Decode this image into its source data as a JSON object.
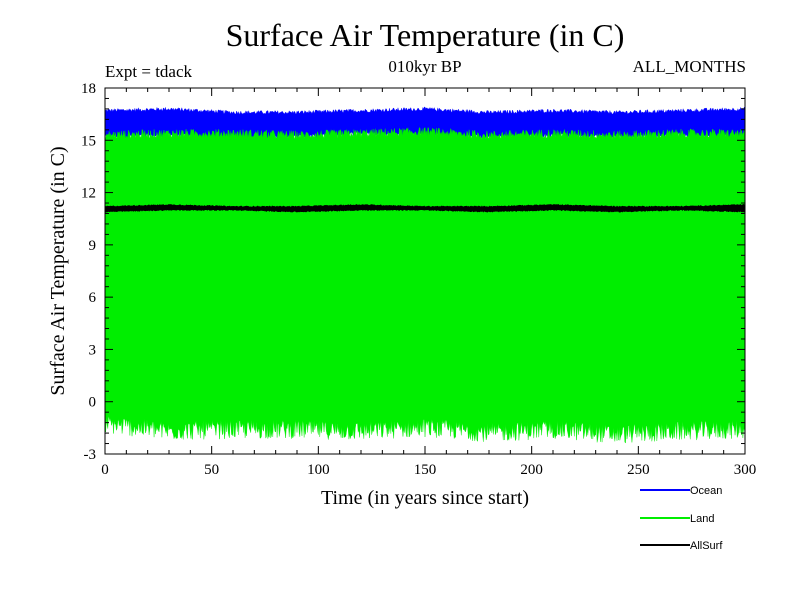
{
  "chart_data": {
    "type": "area",
    "title": "Surface Air Temperature (in C)",
    "subtitle_left": "Expt = tdack",
    "subtitle_center": "010kyr BP",
    "subtitle_right": "ALL_MONTHS",
    "xlabel": "Time (in years since start)",
    "ylabel": "Surface Air Temperature (in C)",
    "xlim": [
      0,
      300
    ],
    "ylim": [
      -3,
      18
    ],
    "xticks": [
      0,
      50,
      100,
      150,
      200,
      250,
      300
    ],
    "yticks": [
      -3,
      0,
      3,
      6,
      9,
      12,
      15,
      18
    ],
    "xtick_labels": [
      "0",
      "50",
      "100",
      "150",
      "200",
      "250",
      "300"
    ],
    "ytick_labels": [
      "-3",
      "0",
      "3",
      "6",
      "9",
      "12",
      "15",
      "18"
    ],
    "legend_position": "bottom-right",
    "series": [
      {
        "name": "Ocean",
        "color": "#0000ff",
        "sampling": "monthly",
        "band_low": [
          15.2,
          15.3,
          15.1,
          15.2,
          15.4,
          15.3,
          15.2,
          15.3,
          15.2,
          15.3,
          15.2
        ],
        "band_high": [
          16.7,
          16.8,
          16.6,
          16.6,
          16.7,
          16.8,
          16.6,
          16.7,
          16.6,
          16.7,
          16.8
        ]
      },
      {
        "name": "Land",
        "color": "#00ee00",
        "sampling": "monthly",
        "band_low": [
          -1.5,
          -1.9,
          -1.8,
          -1.8,
          -1.9,
          -1.7,
          -2.0,
          -1.8,
          -2.1,
          -1.9,
          -1.8
        ],
        "band_high": [
          15.3,
          15.4,
          15.4,
          15.3,
          15.4,
          15.5,
          15.3,
          15.4,
          15.3,
          15.4,
          15.4
        ]
      },
      {
        "name": "AllSurf",
        "color": "#000000",
        "sampling": "monthly",
        "band_low": [
          10.9,
          11.0,
          11.0,
          10.9,
          11.0,
          11.0,
          10.9,
          11.0,
          10.9,
          11.0,
          10.9
        ],
        "band_high": [
          11.2,
          11.3,
          11.2,
          11.2,
          11.3,
          11.2,
          11.2,
          11.3,
          11.2,
          11.2,
          11.3
        ]
      }
    ]
  }
}
